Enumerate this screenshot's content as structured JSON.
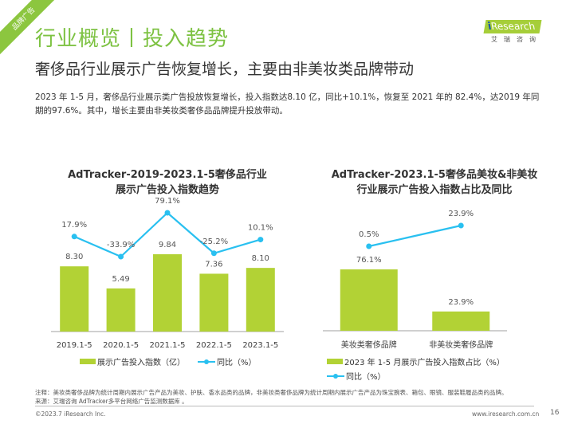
{
  "header": {
    "ribbon_label": "品牌广告",
    "page_title": "行业概览丨投入趋势",
    "sub_title": "奢侈品行业展示广告恢复增长，主要由非美妆类品牌带动",
    "logo": {
      "brand_i": "i",
      "brand_rest": "Research",
      "cn": "艾瑞咨询"
    }
  },
  "summary": "2023 年 1-5 月，奢侈品行业展示类广告投放恢复增长，投入指数达8.10 亿，同比+10.1%，恢复至 2021 年的 82.4%，达2019 年同期的97.6%。其中，增长主要由非美妆类奢侈品品牌提升投放带动。",
  "colors": {
    "bar": "#b2d235",
    "line": "#29c0f0",
    "title_green": "#7dc242"
  },
  "chart_data": [
    {
      "type": "bar",
      "title": "AdTracker-2019-2023.1-5奢侈品行业展示广告投入指数趋势",
      "title_lines": [
        "AdTracker-2019-2023.1-5奢侈品行业",
        "展示广告投入指数趋势"
      ],
      "categories": [
        "2019.1-5",
        "2020.1-5",
        "2021.1-5",
        "2022.1-5",
        "2023.1-5"
      ],
      "series": [
        {
          "name": "展示广告投入指数（亿）",
          "kind": "bar",
          "values": [
            8.3,
            5.49,
            9.84,
            7.36,
            8.1
          ],
          "labels": [
            "8.30",
            "5.49",
            "9.84",
            "7.36",
            "8.10"
          ]
        },
        {
          "name": "同比（%）",
          "kind": "line",
          "values": [
            17.9,
            -33.9,
            79.1,
            -25.2,
            10.1
          ],
          "labels": [
            "17.9%",
            "-33.9%",
            "79.1%",
            "-25.2%",
            "10.1%"
          ]
        }
      ],
      "legend": [
        "展示广告投入指数（亿）",
        "同比（%）"
      ],
      "legend_position": "bottom",
      "grid": false
    },
    {
      "type": "bar",
      "title": "AdTracker-2023.1-5奢侈品美妆&非美妆行业展示广告投入指数占比及同比",
      "title_lines": [
        "AdTracker-2023.1-5奢侈品美妆&非美妆",
        "行业展示广告投入指数占比及同比"
      ],
      "categories": [
        "美妆类奢侈品牌",
        "非美妆类奢侈品牌"
      ],
      "series": [
        {
          "name": "2023 年 1-5 月展示广告投入指数占比（%）",
          "kind": "bar",
          "values": [
            76.1,
            23.9
          ],
          "labels": [
            "76.1%",
            "23.9%"
          ]
        },
        {
          "name": "同比（%）",
          "kind": "line",
          "values": [
            0.5,
            23.9
          ],
          "labels": [
            "0.5%",
            "23.9%"
          ]
        }
      ],
      "legend": [
        "2023 年 1-5 月展示广告投入指数占比（%）",
        "同比（%）"
      ],
      "legend_position": "bottom",
      "grid": false
    }
  ],
  "footer": {
    "note": "注释：美妆类奢侈品牌为统计周期内展示广告产品为美妆、护肤、香水品类的品牌，非美妆类奢侈品牌为统计周期内展示广告产品为珠宝腕表、箱包、眼镜、服装鞋履品类的品牌。",
    "source": "来源：艾瑞咨询 AdTracker多平台网络广告监测数据库 。",
    "copyright": "©2023.7 iResearch Inc.",
    "website": "www.iresearch.com.cn",
    "page_number": "16"
  }
}
